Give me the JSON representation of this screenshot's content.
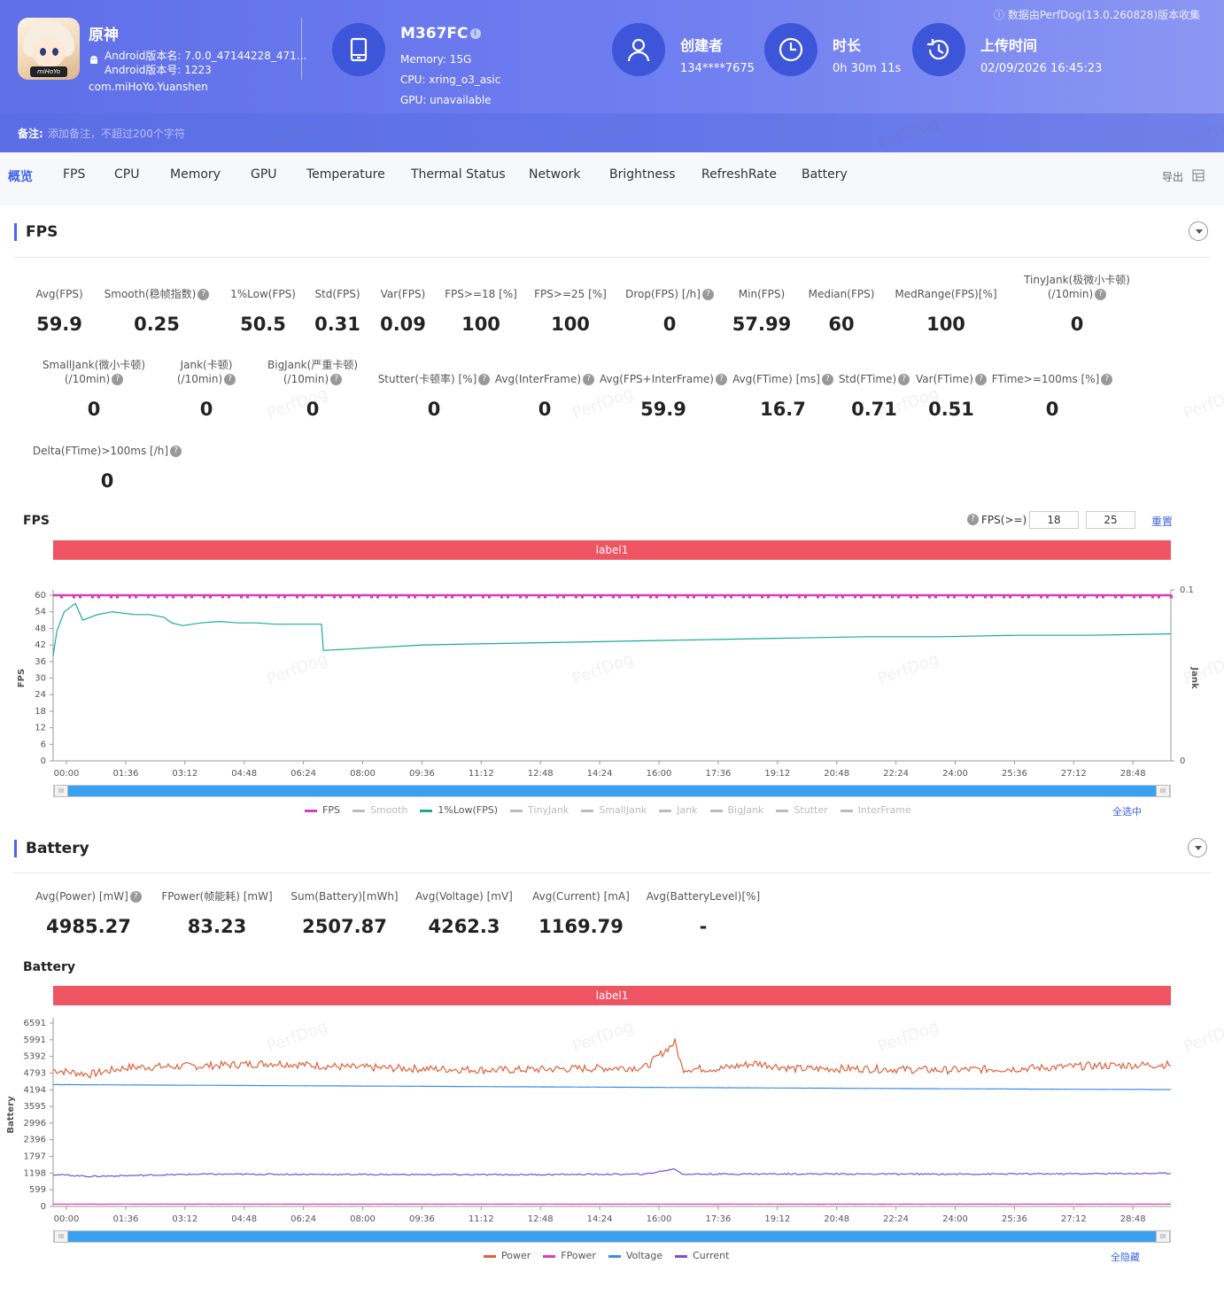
{
  "header": {
    "app_name": "原神",
    "android_version_name": "Android版本名: 7.0.0_47144228_471...",
    "android_version_code": "Android版本号: 1223",
    "package": "com.miHoYo.Yuanshen",
    "app_icon_brand": "miHoYo",
    "device": {
      "name": "M367FC",
      "info_icon": "i",
      "memory": "Memory: 15G",
      "cpu": "CPU: xring_o3_asic",
      "gpu": "GPU: unavailable"
    },
    "creator": {
      "title": "创建者",
      "value": "134****7675"
    },
    "duration": {
      "title": "时长",
      "value": "0h 30m 11s"
    },
    "upload": {
      "title": "上传时间",
      "value": "02/09/2026 16:45:23"
    },
    "source_note": "ⓘ 数据由PerfDog(13.0.260828)版本收集",
    "note_label": "备注:",
    "note_placeholder": "添加备注，不超过200个字符"
  },
  "tabs": [
    "概览",
    "FPS",
    "CPU",
    "Memory",
    "GPU",
    "Temperature",
    "Thermal Status",
    "Network",
    "Brightness",
    "RefreshRate",
    "Battery"
  ],
  "export_label": "导出",
  "watermark": "PerfDog",
  "fps_section": {
    "title": "FPS",
    "metrics_row1": [
      {
        "label": "Avg(FPS)",
        "value": "59.9"
      },
      {
        "label": "Smooth(稳帧指数)",
        "value": "0.25"
      },
      {
        "label": "1%Low(FPS)",
        "value": "50.5"
      },
      {
        "label": "Std(FPS)",
        "value": "0.31"
      },
      {
        "label": "Var(FPS)",
        "value": "0.09"
      },
      {
        "label": "FPS>=18 [%]",
        "value": "100"
      },
      {
        "label": "FPS>=25 [%]",
        "value": "100"
      },
      {
        "label": "Drop(FPS) [/h]",
        "value": "0"
      },
      {
        "label": "Min(FPS)",
        "value": "57.99"
      },
      {
        "label": "Median(FPS)",
        "value": "60"
      },
      {
        "label": "MedRange(FPS)[%]",
        "value": "100"
      },
      {
        "label": "TinyJank(极微小卡顿)",
        "label2": "(/10min)",
        "value": "0"
      }
    ],
    "metrics_row2": [
      {
        "label": "SmallJank(微小卡顿)",
        "label2": "(/10min)",
        "value": "0"
      },
      {
        "label": "Jank(卡顿)",
        "label2": "(/10min)",
        "value": "0"
      },
      {
        "label": "BigJank(严重卡顿)",
        "label2": "(/10min)",
        "value": "0"
      },
      {
        "label": "Stutter(卡顿率) [%]",
        "value": "0"
      },
      {
        "label": "Avg(InterFrame)",
        "value": "0"
      },
      {
        "label": "Avg(FPS+InterFrame)",
        "value": "59.9"
      },
      {
        "label": "Avg(FTime) [ms]",
        "value": "16.7"
      },
      {
        "label": "Std(FTime)",
        "value": "0.71"
      },
      {
        "label": "Var(FTime)",
        "value": "0.51"
      },
      {
        "label": "FTime>=100ms [%]",
        "value": "0"
      }
    ],
    "metrics_row3": [
      {
        "label": "Delta(FTime)>100ms [/h]",
        "value": "0"
      }
    ],
    "chart_title": "FPS",
    "threshold_label": "FPS(>=)",
    "threshold1": "18",
    "threshold2": "25",
    "reset_label": "重置",
    "band_label": "label1",
    "select_all": "全选中",
    "legend": [
      {
        "name": "FPS",
        "color": "#d63fb5",
        "active": true
      },
      {
        "name": "Smooth",
        "color": "#bbbbbb",
        "active": false
      },
      {
        "name": "1%Low(FPS)",
        "color": "#1aa99b",
        "active": true
      },
      {
        "name": "TinyJank",
        "color": "#bbbbbb",
        "active": false
      },
      {
        "name": "SmallJank",
        "color": "#bbbbbb",
        "active": false
      },
      {
        "name": "Jank",
        "color": "#bbbbbb",
        "active": false
      },
      {
        "name": "BigJank",
        "color": "#bbbbbb",
        "active": false
      },
      {
        "name": "Stutter",
        "color": "#bbbbbb",
        "active": false
      },
      {
        "name": "InterFrame",
        "color": "#bbbbbb",
        "active": false
      }
    ]
  },
  "battery_section": {
    "title": "Battery",
    "metrics": [
      {
        "label": "Avg(Power) [mW]",
        "value": "4985.27"
      },
      {
        "label": "FPower(帧能耗) [mW]",
        "value": "83.23"
      },
      {
        "label": "Sum(Battery)[mWh]",
        "value": "2507.87"
      },
      {
        "label": "Avg(Voltage) [mV]",
        "value": "4262.3"
      },
      {
        "label": "Avg(Current) [mA]",
        "value": "1169.79"
      },
      {
        "label": "Avg(BatteryLevel)[%]",
        "value": "-"
      }
    ],
    "chart_title": "Battery",
    "band_label": "label1",
    "select_all": "全隐藏",
    "legend": [
      {
        "name": "Power",
        "color": "#e0603a",
        "active": true
      },
      {
        "name": "FPower",
        "color": "#d63fb5",
        "active": true
      },
      {
        "name": "Voltage",
        "color": "#3f8fe0",
        "active": true
      },
      {
        "name": "Current",
        "color": "#7a4fd0",
        "active": true
      }
    ]
  },
  "chart_data": [
    {
      "type": "line",
      "title": "FPS",
      "ylabel": "FPS",
      "y2label": "Jank",
      "ylim": [
        0,
        60
      ],
      "y2lim": [
        0,
        0.1
      ],
      "yticks": [
        "0",
        "6",
        "12",
        "18",
        "24",
        "30",
        "36",
        "42",
        "48",
        "54",
        "60"
      ],
      "y2ticks": [
        "0",
        "0.1"
      ],
      "xticks": [
        "00:00",
        "01:36",
        "03:12",
        "04:48",
        "06:24",
        "08:00",
        "09:36",
        "11:12",
        "12:48",
        "14:24",
        "16:00",
        "17:36",
        "19:12",
        "20:48",
        "22:24",
        "24:00",
        "25:36",
        "27:12",
        "28:48"
      ],
      "x_minutes_range": [
        0,
        30.2
      ],
      "series": [
        {
          "name": "FPS",
          "color": "#d63fb5",
          "x_min": [
            0,
            30.2
          ],
          "y": [
            60,
            60
          ]
        },
        {
          "name": "1%Low(FPS)",
          "color": "#1aa99b",
          "x_min": [
            0,
            0.1,
            0.3,
            0.6,
            0.8,
            1.2,
            1.6,
            2.2,
            2.6,
            3.0,
            3.2,
            3.5,
            4.0,
            4.5,
            5.0,
            5.5,
            6.0,
            6.5,
            7.0,
            7.25,
            7.3,
            8.0,
            10.0,
            12.0,
            14.0,
            16.0,
            18.0,
            20.0,
            22.0,
            24.0,
            26.0,
            28.0,
            30.2
          ],
          "y": [
            38,
            47,
            54,
            57,
            51,
            53,
            54,
            53,
            53,
            52,
            50,
            49,
            50,
            50.5,
            50,
            50,
            49.5,
            49.5,
            49.5,
            49.5,
            40,
            40.5,
            42,
            42.5,
            43,
            43.5,
            44,
            44.5,
            45,
            45,
            45.5,
            45.5,
            46
          ]
        }
      ]
    },
    {
      "type": "line",
      "title": "Battery",
      "ylabel": "Battery",
      "ylim": [
        0,
        6591
      ],
      "yticks": [
        "0",
        "599",
        "1198",
        "1797",
        "2396",
        "2996",
        "3595",
        "4194",
        "4793",
        "5392",
        "5991",
        "6591"
      ],
      "xticks": [
        "00:00",
        "01:36",
        "03:12",
        "04:48",
        "06:24",
        "08:00",
        "09:36",
        "11:12",
        "12:48",
        "14:24",
        "16:00",
        "17:36",
        "19:12",
        "20:48",
        "22:24",
        "24:00",
        "25:36",
        "27:12",
        "28:48"
      ],
      "x_minutes_range": [
        0,
        30.2
      ],
      "series": [
        {
          "name": "Power",
          "color": "#e0603a",
          "x_min": [
            0,
            1,
            2,
            4,
            6,
            8,
            10,
            12,
            14,
            16,
            16.8,
            17,
            18,
            19,
            20,
            22,
            24,
            26,
            28,
            30.2
          ],
          "y": [
            4900,
            4750,
            5000,
            5050,
            5150,
            5000,
            4950,
            4900,
            4950,
            5000,
            5900,
            4950,
            4950,
            5150,
            4950,
            4950,
            4900,
            4950,
            5050,
            5100
          ]
        },
        {
          "name": "FPower",
          "color": "#d63fb5",
          "x_min": [
            0,
            30.2
          ],
          "y": [
            83,
            83
          ]
        },
        {
          "name": "Voltage",
          "color": "#3f8fe0",
          "x_min": [
            0,
            8,
            16,
            24,
            30.2
          ],
          "y": [
            4380,
            4330,
            4280,
            4230,
            4200
          ]
        },
        {
          "name": "Current",
          "color": "#7a4fd0",
          "x_min": [
            0,
            1,
            4,
            8,
            12,
            16,
            16.8,
            17,
            20,
            24,
            28,
            30.2
          ],
          "y": [
            1150,
            1080,
            1160,
            1150,
            1140,
            1160,
            1350,
            1160,
            1170,
            1160,
            1175,
            1190
          ]
        }
      ]
    }
  ]
}
